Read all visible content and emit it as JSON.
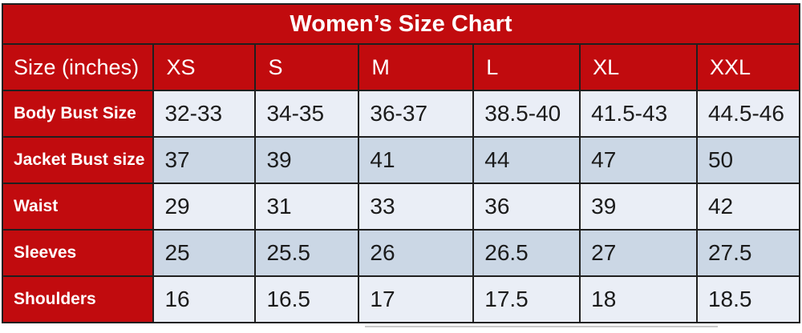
{
  "chart_data": {
    "type": "table",
    "title": "Women’s Size Chart",
    "corner_header": "Size (inches)",
    "unit": "inches",
    "size_headers": [
      "XS",
      "S",
      "M",
      "L",
      "XL",
      "XXL"
    ],
    "rows": [
      {
        "label": "Body Bust Size",
        "values": [
          "32-33",
          "34-35",
          "36-37",
          "38.5-40",
          "41.5-43",
          "44.5-46"
        ]
      },
      {
        "label": "Jacket Bust size",
        "values": [
          "37",
          "39",
          "41",
          "44",
          "47",
          "50"
        ]
      },
      {
        "label": "Waist",
        "values": [
          "29",
          "31",
          "33",
          "36",
          "39",
          "42"
        ]
      },
      {
        "label": "Sleeves",
        "values": [
          "25",
          "25.5",
          "26",
          "26.5",
          "27",
          "27.5"
        ]
      },
      {
        "label": "Shoulders",
        "values": [
          "16",
          "16.5",
          "17",
          "17.5",
          "18",
          "18.5"
        ]
      }
    ],
    "layout": {
      "row_striping": [
        "light",
        "shaded",
        "light",
        "shaded",
        "light"
      ],
      "grid": "on"
    }
  },
  "colors": {
    "header_red": "#c10b0e",
    "row_light": "#eaeef6",
    "row_shaded": "#cbd7e5",
    "border": "#1f1f1f",
    "title_text": "#ffffff",
    "data_text": "#1b1b1b"
  }
}
